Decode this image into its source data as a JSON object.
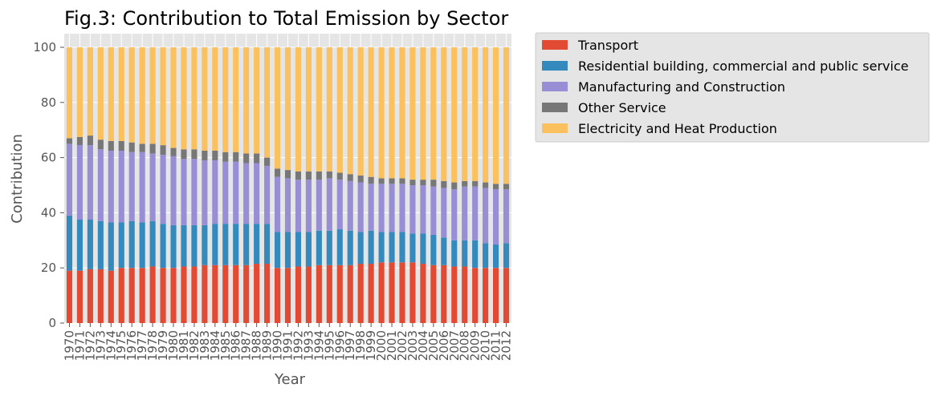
{
  "chart_data": {
    "type": "bar",
    "stacked": true,
    "title": "Fig.3: Contribution to Total Emission by Sector",
    "xlabel": "Year",
    "ylabel": "Contribution",
    "ylim": [
      0,
      100
    ],
    "yticks": [
      0,
      20,
      40,
      60,
      80,
      100
    ],
    "grid": true,
    "legend_placement": "outside-top-right",
    "categories": [
      "1970",
      "1971",
      "1972",
      "1973",
      "1974",
      "1975",
      "1976",
      "1977",
      "1978",
      "1979",
      "1980",
      "1981",
      "1982",
      "1983",
      "1984",
      "1985",
      "1986",
      "1987",
      "1988",
      "1989",
      "1990",
      "1991",
      "1992",
      "1993",
      "1994",
      "1995",
      "1996",
      "1997",
      "1998",
      "1999",
      "2000",
      "2001",
      "2002",
      "2003",
      "2004",
      "2005",
      "2006",
      "2007",
      "2008",
      "2009",
      "2010",
      "2011",
      "2012"
    ],
    "series": [
      {
        "name": "Transport",
        "color": "#E24A33",
        "values": [
          19,
          19,
          19.5,
          19.5,
          19,
          20,
          20,
          20,
          20.5,
          20,
          20,
          20.5,
          20.5,
          21,
          21,
          21,
          21,
          21,
          21.5,
          21.5,
          20,
          20,
          20.5,
          20.5,
          21,
          21,
          21,
          21,
          21.5,
          21.5,
          22,
          22,
          22,
          22,
          21.5,
          21,
          21,
          20.5,
          20.5,
          20,
          20,
          20,
          20
        ]
      },
      {
        "name": "Residential building, commercial and public service",
        "color": "#348ABD",
        "values": [
          20,
          18.5,
          18,
          17.5,
          17.5,
          16.5,
          17,
          16.5,
          16.5,
          16,
          15.5,
          15,
          15,
          14.5,
          15,
          15,
          15,
          15,
          14.5,
          14.5,
          13,
          13,
          12.5,
          12.5,
          12.5,
          12.5,
          13,
          12.5,
          11.5,
          12,
          11,
          11,
          11,
          10.5,
          11,
          11,
          10,
          9.5,
          9.5,
          10,
          9,
          8.5,
          9
        ]
      },
      {
        "name": "Manufacturing and Construction",
        "color": "#988ED5",
        "values": [
          26,
          27,
          27,
          26,
          26,
          26,
          25,
          25.5,
          24.5,
          25,
          25,
          24,
          24,
          23.5,
          23,
          22.5,
          22.5,
          22,
          22,
          21,
          20,
          19.5,
          19,
          19,
          18.5,
          19,
          18,
          18,
          18,
          17,
          17.5,
          17.5,
          17.5,
          17.5,
          17.5,
          17.5,
          18,
          18.5,
          19.5,
          19.5,
          20,
          20,
          19.5
        ]
      },
      {
        "name": "Other Service",
        "color": "#777777",
        "values": [
          2,
          3,
          3.5,
          3.5,
          3.5,
          3.5,
          3.5,
          3,
          3.5,
          3.5,
          3,
          3.5,
          3.5,
          3.5,
          3.5,
          3.5,
          3.5,
          3.5,
          3.5,
          3,
          3,
          3,
          3,
          3,
          3,
          2.5,
          2.5,
          2.5,
          2.5,
          2.5,
          2,
          2,
          2,
          2,
          2,
          2.5,
          2.5,
          2.5,
          2,
          2,
          2,
          2,
          2
        ]
      },
      {
        "name": "Electricity and Heat Production",
        "color": "#FBC15E",
        "values": [
          33,
          32.5,
          32,
          33.5,
          34,
          34,
          34.5,
          35,
          35,
          35.5,
          36.5,
          37,
          37,
          37.5,
          37.5,
          38,
          38,
          38.5,
          38.5,
          40,
          44,
          44.5,
          45,
          45,
          45,
          45,
          45.5,
          46,
          46.5,
          47,
          47.5,
          47.5,
          47.5,
          48,
          48,
          48,
          48.5,
          49,
          48.5,
          48.5,
          49,
          49.5,
          49.5
        ]
      }
    ]
  }
}
